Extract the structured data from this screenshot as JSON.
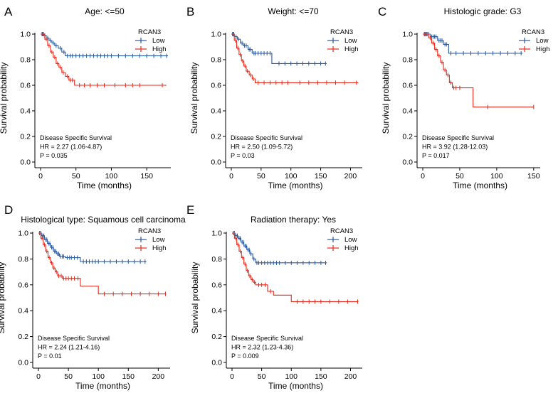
{
  "colors": {
    "low": "#2b5a9e",
    "high": "#e8291c"
  },
  "chart_data": [
    {
      "type": "line",
      "subtype": "kaplan-meier",
      "panel": "A",
      "title": "Age: <=50",
      "xlabel": "Time (months)",
      "ylabel": "Survival probability",
      "xlim": [
        0,
        180
      ],
      "ylim": [
        0,
        1.0
      ],
      "xticks": [
        0,
        50,
        100,
        150
      ],
      "yticks": [
        0.0,
        0.2,
        0.4,
        0.6,
        0.8,
        1.0
      ],
      "legend_title": "RCAN3",
      "stats": [
        "Disease Specific Survival",
        "HR = 2.27 (1.06-4.87)",
        "P = 0.035"
      ],
      "series": [
        {
          "name": "Low",
          "x": [
            0,
            5,
            8,
            12,
            16,
            20,
            25,
            30,
            35,
            180
          ],
          "y": [
            1.0,
            0.99,
            0.97,
            0.95,
            0.93,
            0.91,
            0.89,
            0.86,
            0.83,
            0.83
          ],
          "censor": [
            2,
            4,
            6,
            10,
            14,
            18,
            22,
            28,
            33,
            38,
            42,
            45,
            50,
            55,
            60,
            65,
            70,
            75,
            80,
            85,
            90,
            95,
            100,
            110,
            120,
            130,
            140,
            150,
            160,
            170,
            178
          ]
        },
        {
          "name": "High",
          "x": [
            0,
            6,
            10,
            14,
            18,
            22,
            26,
            30,
            35,
            40,
            48,
            178
          ],
          "y": [
            1.0,
            0.96,
            0.91,
            0.86,
            0.82,
            0.77,
            0.74,
            0.7,
            0.67,
            0.64,
            0.6,
            0.6
          ],
          "censor": [
            3,
            8,
            12,
            16,
            20,
            24,
            28,
            32,
            38,
            42,
            45,
            55,
            62,
            70,
            80,
            90,
            105,
            120,
            130,
            140,
            172
          ]
        }
      ]
    },
    {
      "type": "line",
      "subtype": "kaplan-meier",
      "panel": "B",
      "title": "Weight: <=70",
      "xlabel": "Time (months)",
      "ylabel": "Survival probability",
      "xlim": [
        0,
        215
      ],
      "ylim": [
        0,
        1.0
      ],
      "xticks": [
        0,
        50,
        100,
        150,
        200
      ],
      "yticks": [
        0.0,
        0.2,
        0.4,
        0.6,
        0.8,
        1.0
      ],
      "legend_title": "RCAN3",
      "stats": [
        "Disease Specific Survival",
        "HR = 2.50 (1.09-5.72)",
        "P = 0.03"
      ],
      "series": [
        {
          "name": "Low",
          "x": [
            0,
            5,
            10,
            15,
            20,
            28,
            35,
            68,
            160
          ],
          "y": [
            1.0,
            0.98,
            0.96,
            0.93,
            0.91,
            0.88,
            0.85,
            0.77,
            0.77
          ],
          "censor": [
            2,
            4,
            8,
            12,
            18,
            22,
            25,
            30,
            32,
            38,
            40,
            45,
            50,
            55,
            60,
            65,
            80,
            90,
            100,
            110,
            120,
            130,
            140,
            150,
            158
          ]
        },
        {
          "name": "High",
          "x": [
            0,
            5,
            9,
            13,
            17,
            21,
            25,
            30,
            35,
            40,
            213
          ],
          "y": [
            1.0,
            0.95,
            0.89,
            0.84,
            0.79,
            0.75,
            0.71,
            0.68,
            0.65,
            0.62,
            0.62
          ],
          "censor": [
            3,
            7,
            11,
            15,
            19,
            23,
            27,
            32,
            37,
            45,
            55,
            65,
            75,
            85,
            95,
            115,
            130,
            145,
            160,
            175,
            190,
            210
          ]
        }
      ]
    },
    {
      "type": "line",
      "subtype": "kaplan-meier",
      "panel": "C",
      "title": "Histologic grade: G3",
      "xlabel": "Time (months)",
      "ylabel": "Survival probability",
      "xlim": [
        0,
        155
      ],
      "ylim": [
        0,
        1.0
      ],
      "xticks": [
        0,
        50,
        100,
        150
      ],
      "yticks": [
        0.0,
        0.2,
        0.4,
        0.6,
        0.8,
        1.0
      ],
      "legend_title": "RCAN3",
      "stats": [
        "Disease Specific Survival",
        "HR = 3.92 (1.28-12.03)",
        "P = 0.017"
      ],
      "series": [
        {
          "name": "Low",
          "x": [
            0,
            10,
            20,
            28,
            35,
            135
          ],
          "y": [
            1.0,
            0.98,
            0.95,
            0.92,
            0.85,
            0.85
          ],
          "censor": [
            2,
            4,
            6,
            8,
            12,
            14,
            16,
            18,
            22,
            24,
            26,
            30,
            32,
            38,
            45,
            55,
            65,
            75,
            85,
            95,
            105,
            115,
            125,
            133
          ]
        },
        {
          "name": "High",
          "x": [
            0,
            8,
            12,
            16,
            20,
            24,
            28,
            32,
            36,
            40,
            68,
            150
          ],
          "y": [
            1.0,
            0.97,
            0.93,
            0.88,
            0.83,
            0.78,
            0.72,
            0.68,
            0.62,
            0.58,
            0.43,
            0.43
          ],
          "censor": [
            3,
            5,
            10,
            14,
            18,
            22,
            26,
            30,
            34,
            38,
            42,
            45,
            50,
            88,
            150
          ]
        }
      ]
    },
    {
      "type": "line",
      "subtype": "kaplan-meier",
      "panel": "D",
      "title": "Histological type: Squamous cell carcinoma",
      "xlabel": "Time (months)",
      "ylabel": "Survival probability",
      "xlim": [
        0,
        215
      ],
      "ylim": [
        0,
        1.0
      ],
      "xticks": [
        0,
        50,
        100,
        150,
        200
      ],
      "yticks": [
        0.0,
        0.2,
        0.4,
        0.6,
        0.8,
        1.0
      ],
      "legend_title": "RCAN3",
      "stats": [
        "Disease Specific Survival",
        "HR = 2.24 (1.21-4.16)",
        "P = 0.01"
      ],
      "series": [
        {
          "name": "Low",
          "x": [
            0,
            5,
            10,
            15,
            20,
            25,
            30,
            35,
            45,
            70,
            180
          ],
          "y": [
            1.0,
            0.98,
            0.95,
            0.92,
            0.89,
            0.86,
            0.84,
            0.82,
            0.81,
            0.78,
            0.78
          ],
          "censor": [
            2,
            4,
            7,
            9,
            12,
            14,
            17,
            19,
            22,
            24,
            27,
            29,
            32,
            34,
            37,
            40,
            42,
            48,
            52,
            55,
            60,
            65,
            75,
            80,
            85,
            90,
            95,
            100,
            110,
            120,
            130,
            140,
            150,
            160,
            170,
            178
          ]
        },
        {
          "name": "High",
          "x": [
            0,
            4,
            8,
            12,
            16,
            20,
            24,
            28,
            32,
            40,
            70,
            100,
            213
          ],
          "y": [
            1.0,
            0.96,
            0.91,
            0.86,
            0.81,
            0.77,
            0.73,
            0.7,
            0.67,
            0.65,
            0.59,
            0.53,
            0.53
          ],
          "censor": [
            2,
            6,
            10,
            14,
            18,
            22,
            26,
            30,
            34,
            38,
            42,
            46,
            50,
            55,
            60,
            66,
            110,
            125,
            140,
            155,
            170,
            185,
            200,
            212
          ]
        }
      ]
    },
    {
      "type": "line",
      "subtype": "kaplan-meier",
      "panel": "E",
      "title": "Radiation therapy: Yes",
      "xlabel": "Time (months)",
      "ylabel": "Survival probability",
      "xlim": [
        0,
        215
      ],
      "ylim": [
        0,
        1.0
      ],
      "xticks": [
        0,
        50,
        100,
        150,
        200
      ],
      "yticks": [
        0.0,
        0.2,
        0.4,
        0.6,
        0.8,
        1.0
      ],
      "legend_title": "RCAN3",
      "stats": [
        "Disease Specific Survival",
        "HR = 2.32 (1.23-4.36)",
        "P = 0.009"
      ],
      "series": [
        {
          "name": "Low",
          "x": [
            0,
            5,
            10,
            15,
            20,
            25,
            30,
            35,
            40,
            160
          ],
          "y": [
            1.0,
            0.98,
            0.96,
            0.93,
            0.9,
            0.87,
            0.84,
            0.8,
            0.77,
            0.77
          ],
          "censor": [
            2,
            4,
            7,
            9,
            12,
            14,
            17,
            19,
            22,
            24,
            27,
            29,
            32,
            37,
            42,
            45,
            50,
            55,
            60,
            65,
            70,
            75,
            80,
            90,
            100,
            110,
            120,
            130,
            140,
            150,
            158
          ]
        },
        {
          "name": "High",
          "x": [
            0,
            4,
            8,
            12,
            16,
            20,
            24,
            28,
            32,
            36,
            40,
            60,
            70,
            100,
            213
          ],
          "y": [
            1.0,
            0.96,
            0.91,
            0.86,
            0.81,
            0.76,
            0.71,
            0.67,
            0.64,
            0.62,
            0.6,
            0.55,
            0.52,
            0.47,
            0.47
          ],
          "censor": [
            2,
            6,
            10,
            14,
            18,
            22,
            26,
            30,
            34,
            38,
            45,
            50,
            56,
            65,
            110,
            120,
            130,
            140,
            150,
            165,
            180,
            195,
            212
          ]
        }
      ]
    }
  ]
}
